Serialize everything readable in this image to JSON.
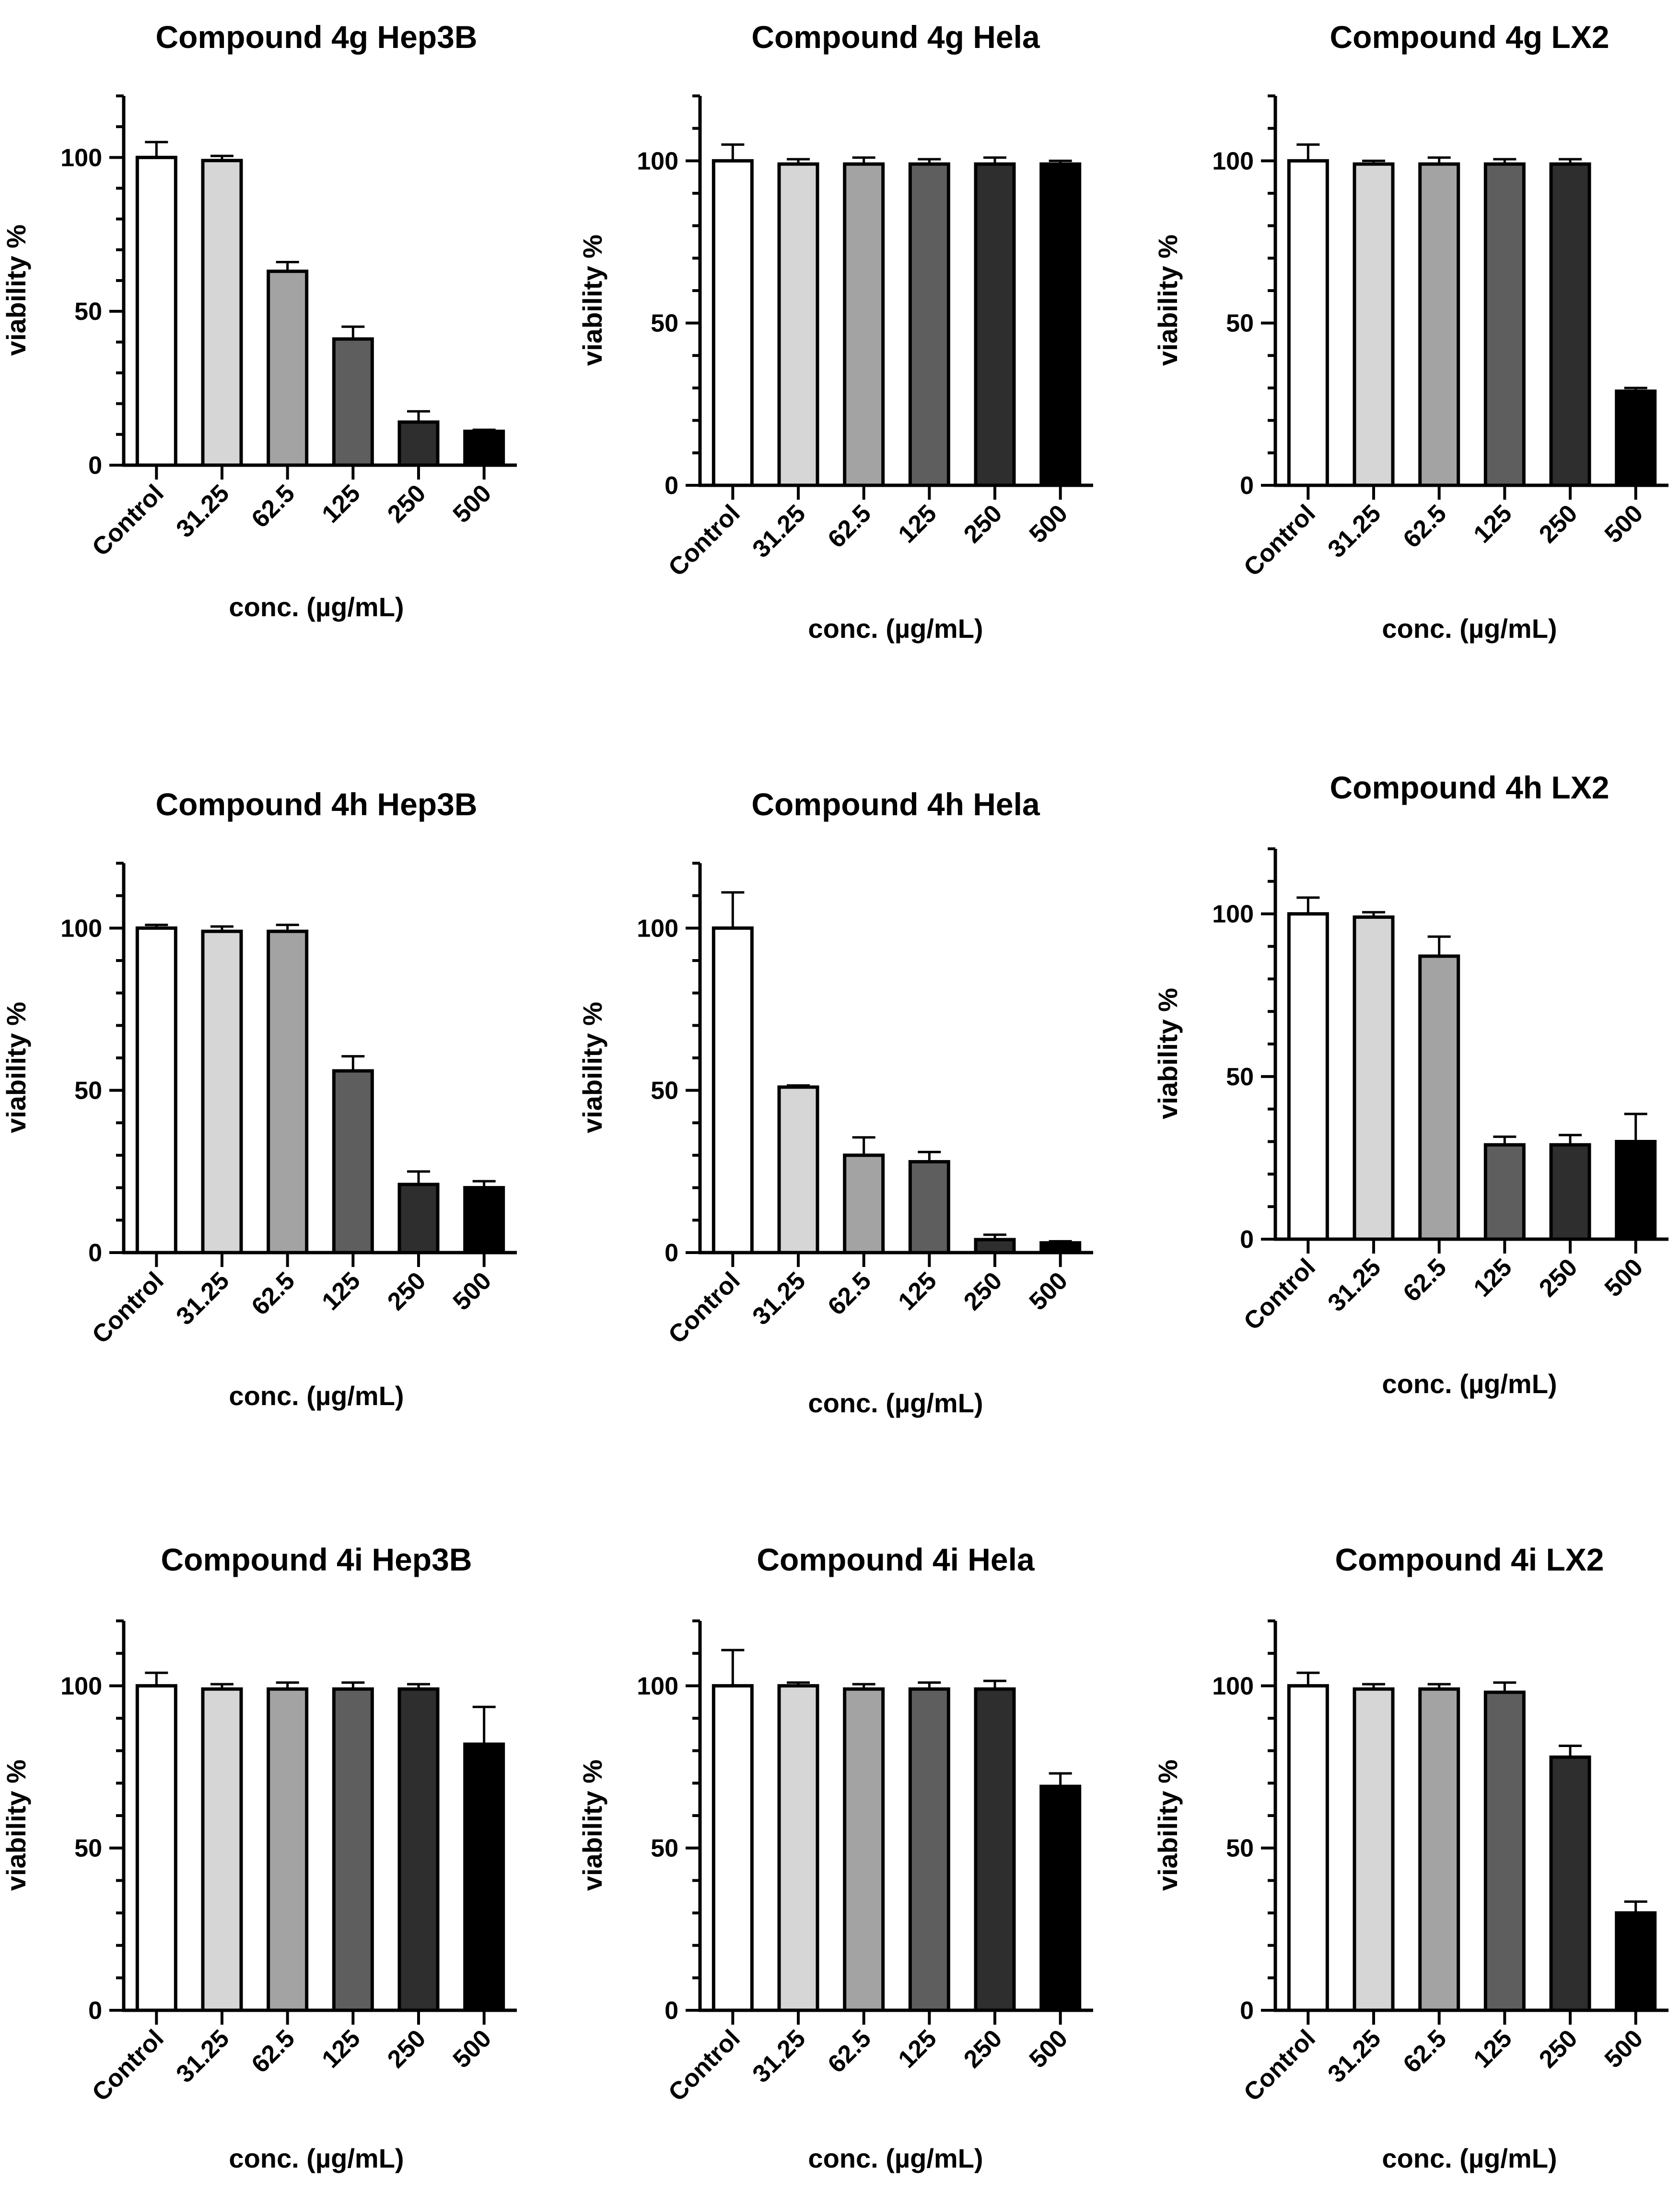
{
  "figure": {
    "bar_colors": [
      "#ffffff",
      "#d6d6d6",
      "#a3a3a3",
      "#5e5e5e",
      "#2e2e2e",
      "#000000"
    ],
    "axis_color": "#000000"
  },
  "chart_data": [
    {
      "type": "bar",
      "title": "Compound 4g Hep3B",
      "xlabel": "conc. (µg/mL)",
      "ylabel": "viability %",
      "categories": [
        "Control",
        "31.25",
        "62.5",
        "125",
        "250",
        "500"
      ],
      "values": [
        100,
        99,
        63,
        41,
        14,
        11
      ],
      "errors": [
        5,
        1.5,
        3,
        4,
        3.5,
        0.5
      ],
      "ylim": [
        0,
        120
      ],
      "yticks": [
        0,
        50,
        100
      ]
    },
    {
      "type": "bar",
      "title": "Compound 4g Hela",
      "xlabel": "conc. (µg/mL)",
      "ylabel": "viability %",
      "categories": [
        "Control",
        "31.25",
        "62.5",
        "125",
        "250",
        "500"
      ],
      "values": [
        100,
        99,
        99,
        99,
        99,
        99
      ],
      "errors": [
        5,
        1.5,
        2,
        1.5,
        2,
        1
      ],
      "ylim": [
        0,
        120
      ],
      "yticks": [
        0,
        50,
        100
      ]
    },
    {
      "type": "bar",
      "title": "Compound 4g LX2",
      "xlabel": "conc. (µg/mL)",
      "ylabel": "viability %",
      "categories": [
        "Control",
        "31.25",
        "62.5",
        "125",
        "250",
        "500"
      ],
      "values": [
        100,
        99,
        99,
        99,
        99,
        29
      ],
      "errors": [
        5,
        1,
        2,
        1.5,
        1.5,
        1
      ],
      "ylim": [
        0,
        120
      ],
      "yticks": [
        0,
        50,
        100
      ]
    },
    {
      "type": "bar",
      "title": "Compound 4h Hep3B",
      "xlabel": "conc. (µg/mL)",
      "ylabel": "viability %",
      "categories": [
        "Control",
        "31.25",
        "62.5",
        "125",
        "250",
        "500"
      ],
      "values": [
        100,
        99,
        99,
        56,
        21,
        20
      ],
      "errors": [
        1,
        1.5,
        2,
        4.5,
        4,
        2
      ],
      "ylim": [
        0,
        120
      ],
      "yticks": [
        0,
        50,
        100
      ]
    },
    {
      "type": "bar",
      "title": "Compound 4h Hela",
      "xlabel": "conc. (µg/mL)",
      "ylabel": "viability %",
      "categories": [
        "Control",
        "31.25",
        "62.5",
        "125",
        "250",
        "500"
      ],
      "values": [
        100,
        51,
        30,
        28,
        4,
        3
      ],
      "errors": [
        11,
        0.5,
        5.5,
        3,
        1.5,
        0.5
      ],
      "ylim": [
        0,
        120
      ],
      "yticks": [
        0,
        50,
        100
      ]
    },
    {
      "type": "bar",
      "title": "Compound 4h LX2",
      "xlabel": "conc. (µg/mL)",
      "ylabel": "viability %",
      "categories": [
        "Control",
        "31.25",
        "62.5",
        "125",
        "250",
        "500"
      ],
      "values": [
        100,
        99,
        87,
        29,
        29,
        30
      ],
      "errors": [
        5,
        1.5,
        6,
        2.5,
        3,
        8.5
      ],
      "ylim": [
        0,
        120
      ],
      "yticks": [
        0,
        50,
        100
      ]
    },
    {
      "type": "bar",
      "title": "Compound 4i Hep3B",
      "xlabel": "conc. (µg/mL)",
      "ylabel": "viability %",
      "categories": [
        "Control",
        "31.25",
        "62.5",
        "125",
        "250",
        "500"
      ],
      "values": [
        100,
        99,
        99,
        99,
        99,
        82
      ],
      "errors": [
        4,
        1.5,
        2,
        2,
        1.5,
        11.5
      ],
      "ylim": [
        0,
        120
      ],
      "yticks": [
        0,
        50,
        100
      ]
    },
    {
      "type": "bar",
      "title": "Compound 4i Hela",
      "xlabel": "conc. (µg/mL)",
      "ylabel": "viability %",
      "categories": [
        "Control",
        "31.25",
        "62.5",
        "125",
        "250",
        "500"
      ],
      "values": [
        100,
        100,
        99,
        99,
        99,
        69
      ],
      "errors": [
        11,
        1,
        1.5,
        2,
        2.5,
        4
      ],
      "ylim": [
        0,
        120
      ],
      "yticks": [
        0,
        50,
        100
      ]
    },
    {
      "type": "bar",
      "title": "Compound 4i LX2",
      "xlabel": "conc. (µg/mL)",
      "ylabel": "viability %",
      "categories": [
        "Control",
        "31.25",
        "62.5",
        "125",
        "250",
        "500"
      ],
      "values": [
        100,
        99,
        99,
        98,
        78,
        30
      ],
      "errors": [
        4,
        1.5,
        1.5,
        3,
        3.5,
        3.5
      ],
      "ylim": [
        0,
        120
      ],
      "yticks": [
        0,
        50,
        100
      ]
    }
  ]
}
